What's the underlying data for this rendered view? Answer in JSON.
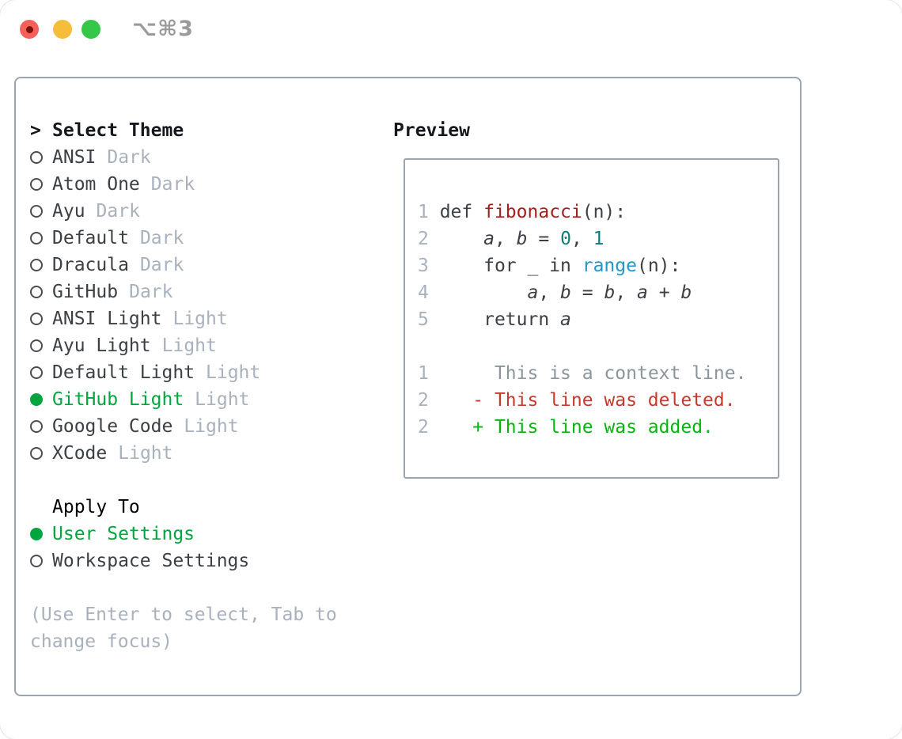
{
  "titlebar": {
    "shortcut_label": "⌥⌘3"
  },
  "colors": {
    "accent_green": "#00a540",
    "added_green": "#00b80b",
    "deleted_red": "#c6392c",
    "function_red": "#a61d1d",
    "number_teal": "#0e7d7d",
    "builtin_blue": "#2196c9",
    "muted_gray": "#a8b1bc",
    "context_gray": "#8b959c",
    "text_dark": "#3a4045",
    "border_gray": "#9ba4af"
  },
  "theme_panel": {
    "header": {
      "prefix": ">",
      "label": "Select Theme"
    },
    "themes": [
      {
        "name": "ANSI",
        "variant": "Dark",
        "selected": false
      },
      {
        "name": "Atom One",
        "variant": "Dark",
        "selected": false
      },
      {
        "name": "Ayu",
        "variant": "Dark",
        "selected": false
      },
      {
        "name": "Default",
        "variant": "Dark",
        "selected": false
      },
      {
        "name": "Dracula",
        "variant": "Dark",
        "selected": false
      },
      {
        "name": "GitHub",
        "variant": "Dark",
        "selected": false
      },
      {
        "name": "ANSI Light",
        "variant": "Light",
        "selected": false
      },
      {
        "name": "Ayu Light",
        "variant": "Light",
        "selected": false
      },
      {
        "name": "Default Light",
        "variant": "Light",
        "selected": false
      },
      {
        "name": "GitHub Light",
        "variant": "Light",
        "selected": true
      },
      {
        "name": "Google Code",
        "variant": "Light",
        "selected": false
      },
      {
        "name": "XCode",
        "variant": "Light",
        "selected": false
      }
    ],
    "apply_to": {
      "label": "Apply To",
      "options": [
        {
          "name": "User Settings",
          "selected": true
        },
        {
          "name": "Workspace Settings",
          "selected": false
        }
      ]
    },
    "hint_lines": [
      "(Use Enter to select, Tab to",
      "change focus)"
    ]
  },
  "preview": {
    "label": "Preview",
    "lines": [
      [
        [
          "ln",
          "1"
        ],
        [
          "pl",
          " def "
        ],
        [
          "fn",
          "fibonacci"
        ],
        [
          "pl",
          "(n):"
        ]
      ],
      [
        [
          "ln",
          "2"
        ],
        [
          "pl",
          "     "
        ],
        [
          "vr",
          "a"
        ],
        [
          "pl",
          ", "
        ],
        [
          "vr",
          "b"
        ],
        [
          "pl",
          " = "
        ],
        [
          "nl",
          "0"
        ],
        [
          "pl",
          ", "
        ],
        [
          "nl",
          "1"
        ]
      ],
      [
        [
          "ln",
          "3"
        ],
        [
          "pl",
          "     for _ in "
        ],
        [
          "bi",
          "range"
        ],
        [
          "pl",
          "(n):"
        ]
      ],
      [
        [
          "ln",
          "4"
        ],
        [
          "pl",
          "         "
        ],
        [
          "vr",
          "a"
        ],
        [
          "pl",
          ", "
        ],
        [
          "vr",
          "b"
        ],
        [
          "pl",
          " = "
        ],
        [
          "vr",
          "b"
        ],
        [
          "pl",
          ", "
        ],
        [
          "vr",
          "a"
        ],
        [
          "pl",
          " + "
        ],
        [
          "vr",
          "b"
        ]
      ],
      [
        [
          "ln",
          "5"
        ],
        [
          "pl",
          "     return "
        ],
        [
          "vr",
          "a"
        ]
      ],
      [],
      [
        [
          "ln",
          "1"
        ],
        [
          "pl",
          "      "
        ],
        [
          "cx",
          "This is a context line."
        ]
      ],
      [
        [
          "ln",
          "2"
        ],
        [
          "pl",
          "    "
        ],
        [
          "dl",
          "- This line was deleted."
        ]
      ],
      [
        [
          "ln",
          "2"
        ],
        [
          "pl",
          "    "
        ],
        [
          "ad",
          "+ This line was added."
        ]
      ]
    ]
  }
}
